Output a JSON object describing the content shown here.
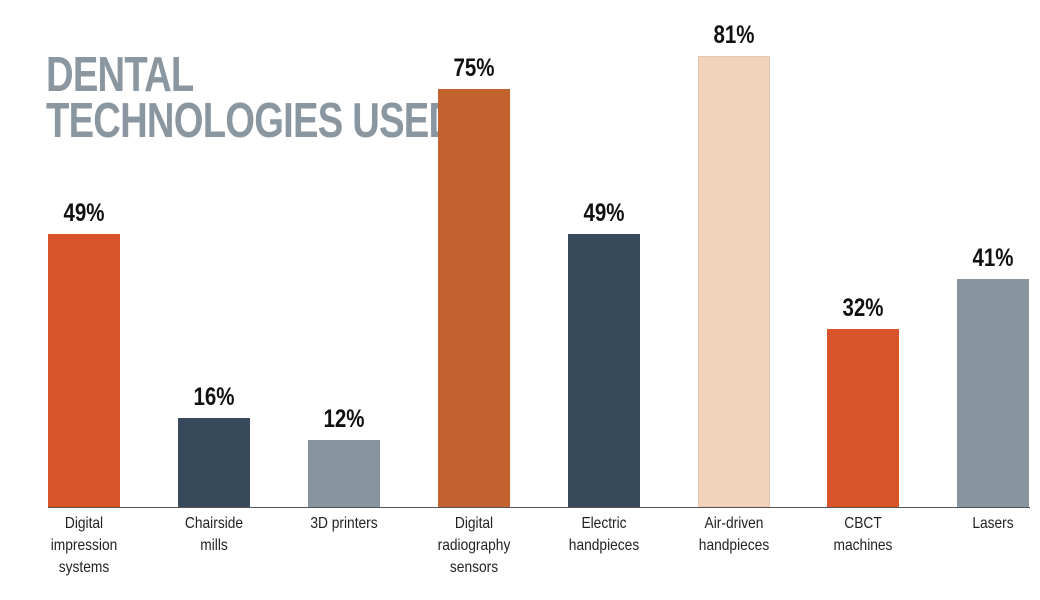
{
  "title": {
    "line1": "DENTAL",
    "line2": "TECHNOLOGIES USED"
  },
  "colors": {
    "orange_red": "#d9532b",
    "dark_slate": "#364a5c",
    "gray": "#88959e",
    "burnt_orange": "#c2632f",
    "peach": "#f1d3bc",
    "title_gray": "#8a96a0"
  },
  "bars": [
    {
      "label_lines": [
        "Digital",
        "impression",
        "systems"
      ],
      "value_label": "49%",
      "value": 49,
      "color": "#d9532b"
    },
    {
      "label_lines": [
        "Chairside",
        "mills"
      ],
      "value_label": "16%",
      "value": 16,
      "color": "#364a5c"
    },
    {
      "label_lines": [
        "3D printers"
      ],
      "value_label": "12%",
      "value": 12,
      "color": "#88959e"
    },
    {
      "label_lines": [
        "Digital",
        "radiography",
        "sensors"
      ],
      "value_label": "75%",
      "value": 75,
      "color": "#c2632f"
    },
    {
      "label_lines": [
        "Electric",
        "handpieces"
      ],
      "value_label": "49%",
      "value": 49,
      "color": "#364a5c"
    },
    {
      "label_lines": [
        "Air-driven",
        "handpieces"
      ],
      "value_label": "81%",
      "value": 81,
      "color": "#f1d3bc"
    },
    {
      "label_lines": [
        "CBCT",
        "machines"
      ],
      "value_label": "32%",
      "value": 32,
      "color": "#d9532b"
    },
    {
      "label_lines": [
        "Lasers"
      ],
      "value_label": "41%",
      "value": 41,
      "color": "#88959e"
    }
  ],
  "chart_data": {
    "type": "bar",
    "title": "DENTAL TECHNOLOGIES USED",
    "categories": [
      "Digital impression systems",
      "Chairside mills",
      "3D printers",
      "Digital radiography sensors",
      "Electric handpieces",
      "Air-driven handpieces",
      "CBCT machines",
      "Lasers"
    ],
    "values": [
      49,
      16,
      12,
      75,
      49,
      81,
      32,
      41
    ],
    "value_labels": [
      "49%",
      "16%",
      "12%",
      "75%",
      "49%",
      "81%",
      "32%",
      "41%"
    ],
    "colors": [
      "#d9532b",
      "#364a5c",
      "#88959e",
      "#c2632f",
      "#364a5c",
      "#f1d3bc",
      "#d9532b",
      "#88959e"
    ],
    "xlabel": "",
    "ylabel": "",
    "unit": "%",
    "ylim": [
      0,
      100
    ],
    "grid": false,
    "legend": null,
    "data_labels": "above bars"
  }
}
